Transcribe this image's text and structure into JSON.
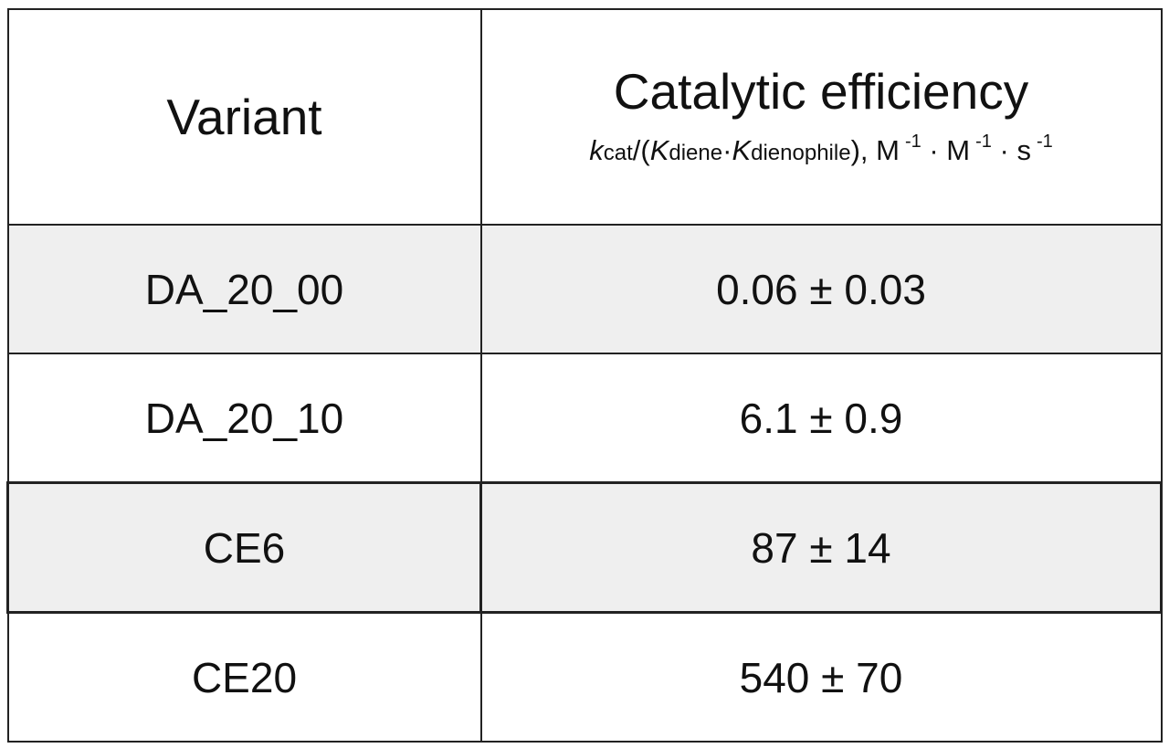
{
  "table": {
    "header": {
      "variant": "Variant",
      "efficiency": "Catalytic efficiency",
      "units": [
        "k",
        "cat",
        "/(",
        "K",
        "diene",
        "·",
        "K",
        "dienophile",
        "), M",
        "-1",
        " · M",
        "-1",
        " · s",
        "-1"
      ]
    },
    "rows": [
      [
        "DA_20_00",
        "0.06 ± 0.03"
      ],
      [
        "DA_20_10",
        "6.1 ± 0.9"
      ],
      [
        "CE6",
        "87 ± 14"
      ],
      [
        "CE20",
        "540 ± 70"
      ]
    ]
  }
}
